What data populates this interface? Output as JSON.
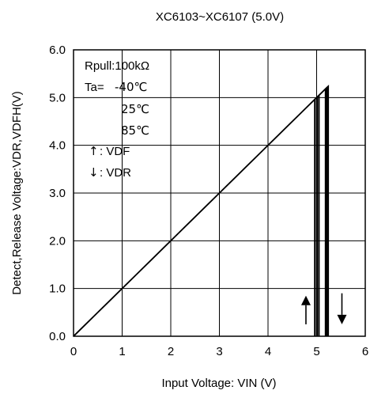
{
  "chart_data": {
    "type": "line",
    "title": "XC6103~XC6107 (5.0V)",
    "xlabel": "Input Voltage:  VIN (V)",
    "ylabel": "Detect,Release Voltage:VDR,VDFH(V)",
    "xlim": [
      0,
      6
    ],
    "ylim": [
      0,
      6
    ],
    "x_ticks": [
      "0",
      "1",
      "2",
      "3",
      "4",
      "5",
      "6"
    ],
    "y_ticks": [
      "0.0",
      "1.0",
      "2.0",
      "3.0",
      "4.0",
      "5.0",
      "6.0"
    ],
    "grid": true,
    "legend_position": "top-left",
    "legend": {
      "rpull": "Rpull:100kΩ",
      "ta_prefix": "Ta=",
      "temps": [
        "-40℃",
        "25℃",
        "85℃"
      ],
      "vdf_arrow": "↑",
      "vdf_label": ": VDF",
      "vdr_arrow": "↓",
      "vdr_label": ": VDR"
    },
    "series": [
      {
        "temp": "-40℃",
        "points": [
          [
            0,
            0
          ],
          [
            4.96,
            4.96
          ],
          [
            4.96,
            0.0
          ]
        ]
      },
      {
        "temp": "25℃",
        "points": [
          [
            0,
            0
          ],
          [
            5.01,
            5.01
          ],
          [
            5.01,
            0.0
          ]
        ]
      },
      {
        "temp": "85℃",
        "points": [
          [
            0,
            0
          ],
          [
            5.24,
            5.24
          ],
          [
            5.24,
            0.0
          ]
        ]
      },
      {
        "temp": "-40℃",
        "points": [
          [
            4.97,
            0.0
          ],
          [
            4.97,
            4.97
          ],
          [
            5.18,
            5.18
          ],
          [
            5.18,
            0.0
          ]
        ]
      },
      {
        "temp": "25℃",
        "points": [
          [
            5.02,
            0.0
          ],
          [
            5.02,
            5.02
          ],
          [
            5.2,
            5.2
          ],
          [
            5.2,
            0.0
          ]
        ]
      },
      {
        "temp": "85℃",
        "points": [
          [
            5.05,
            0.0
          ],
          [
            5.05,
            5.05
          ],
          [
            5.22,
            5.22
          ],
          [
            5.22,
            0.0
          ]
        ]
      }
    ],
    "annotation_arrows": [
      {
        "direction": "up",
        "x": 4.78,
        "y_from": 0.25,
        "y_to": 0.85
      },
      {
        "direction": "down",
        "x": 5.52,
        "y_from": 0.9,
        "y_to": 0.25
      }
    ]
  }
}
